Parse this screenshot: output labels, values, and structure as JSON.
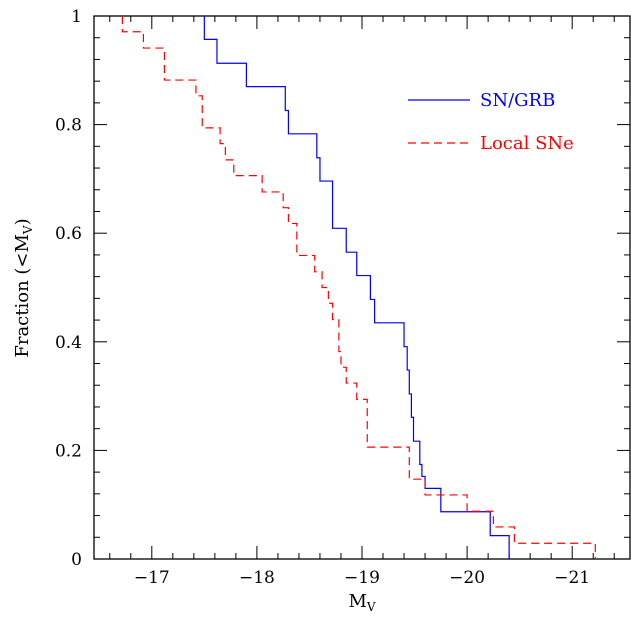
{
  "chart_data": {
    "type": "line",
    "title": "",
    "xlabel": {
      "main": "M",
      "sub": "V"
    },
    "ylabel": {
      "main": "Fraction (<M",
      "sub": "V",
      "close": ")"
    },
    "xlim": [
      -16.45,
      -21.55
    ],
    "ylim": [
      0,
      1
    ],
    "x_axis_reversed": true,
    "x_ticks": [
      -17,
      -18,
      -19,
      -20,
      -21
    ],
    "x_tick_labels": [
      "−17",
      "−18",
      "−19",
      "−20",
      "−21"
    ],
    "y_ticks": [
      0,
      0.2,
      0.4,
      0.6,
      0.8,
      1
    ],
    "y_tick_labels": [
      "0",
      "0.2",
      "0.4",
      "0.6",
      "0.8",
      "1"
    ],
    "legend_position": "top-right",
    "series": [
      {
        "name": "SN/GRB",
        "color": "#0000ff",
        "style": "solid",
        "steps": [
          [
            -17.5,
            1.0
          ],
          [
            -17.5,
            0.957
          ],
          [
            -17.62,
            0.957
          ],
          [
            -17.62,
            0.913
          ],
          [
            -17.9,
            0.913
          ],
          [
            -17.9,
            0.87
          ],
          [
            -18.27,
            0.87
          ],
          [
            -18.27,
            0.826
          ],
          [
            -18.3,
            0.826
          ],
          [
            -18.3,
            0.783
          ],
          [
            -18.57,
            0.783
          ],
          [
            -18.57,
            0.739
          ],
          [
            -18.6,
            0.739
          ],
          [
            -18.6,
            0.696
          ],
          [
            -18.72,
            0.696
          ],
          [
            -18.72,
            0.609
          ],
          [
            -18.85,
            0.609
          ],
          [
            -18.85,
            0.565
          ],
          [
            -18.95,
            0.565
          ],
          [
            -18.95,
            0.522
          ],
          [
            -19.08,
            0.522
          ],
          [
            -19.08,
            0.478
          ],
          [
            -19.12,
            0.478
          ],
          [
            -19.12,
            0.435
          ],
          [
            -19.4,
            0.435
          ],
          [
            -19.4,
            0.391
          ],
          [
            -19.43,
            0.391
          ],
          [
            -19.43,
            0.348
          ],
          [
            -19.45,
            0.348
          ],
          [
            -19.45,
            0.304
          ],
          [
            -19.47,
            0.304
          ],
          [
            -19.47,
            0.261
          ],
          [
            -19.49,
            0.261
          ],
          [
            -19.49,
            0.217
          ],
          [
            -19.55,
            0.217
          ],
          [
            -19.55,
            0.174
          ],
          [
            -19.57,
            0.174
          ],
          [
            -19.57,
            0.152
          ],
          [
            -19.6,
            0.152
          ],
          [
            -19.6,
            0.13
          ],
          [
            -19.75,
            0.13
          ],
          [
            -19.75,
            0.087
          ],
          [
            -20.22,
            0.087
          ],
          [
            -20.22,
            0.043
          ],
          [
            -20.4,
            0.043
          ],
          [
            -20.4,
            0.0
          ]
        ]
      },
      {
        "name": "Local SNe",
        "color": "#ff0000",
        "style": "dashed",
        "steps": [
          [
            -16.72,
            1.0
          ],
          [
            -16.72,
            0.971
          ],
          [
            -16.92,
            0.971
          ],
          [
            -16.92,
            0.941
          ],
          [
            -17.12,
            0.941
          ],
          [
            -17.12,
            0.882
          ],
          [
            -17.42,
            0.882
          ],
          [
            -17.42,
            0.853
          ],
          [
            -17.48,
            0.853
          ],
          [
            -17.48,
            0.794
          ],
          [
            -17.65,
            0.794
          ],
          [
            -17.65,
            0.765
          ],
          [
            -17.7,
            0.765
          ],
          [
            -17.7,
            0.735
          ],
          [
            -17.78,
            0.735
          ],
          [
            -17.78,
            0.706
          ],
          [
            -18.05,
            0.706
          ],
          [
            -18.05,
            0.676
          ],
          [
            -18.25,
            0.676
          ],
          [
            -18.25,
            0.647
          ],
          [
            -18.3,
            0.647
          ],
          [
            -18.3,
            0.618
          ],
          [
            -18.38,
            0.618
          ],
          [
            -18.38,
            0.559
          ],
          [
            -18.55,
            0.559
          ],
          [
            -18.55,
            0.529
          ],
          [
            -18.62,
            0.529
          ],
          [
            -18.62,
            0.5
          ],
          [
            -18.68,
            0.5
          ],
          [
            -18.68,
            0.471
          ],
          [
            -18.72,
            0.471
          ],
          [
            -18.72,
            0.441
          ],
          [
            -18.78,
            0.441
          ],
          [
            -18.78,
            0.382
          ],
          [
            -18.8,
            0.382
          ],
          [
            -18.8,
            0.353
          ],
          [
            -18.85,
            0.353
          ],
          [
            -18.85,
            0.324
          ],
          [
            -18.95,
            0.324
          ],
          [
            -18.95,
            0.294
          ],
          [
            -19.05,
            0.294
          ],
          [
            -19.05,
            0.206
          ],
          [
            -19.45,
            0.206
          ],
          [
            -19.45,
            0.147
          ],
          [
            -19.6,
            0.147
          ],
          [
            -19.6,
            0.118
          ],
          [
            -19.7,
            0.118
          ],
          [
            -19.7,
            0.118
          ],
          [
            -20.0,
            0.118
          ],
          [
            -20.0,
            0.088
          ],
          [
            -20.25,
            0.088
          ],
          [
            -20.25,
            0.059
          ],
          [
            -20.45,
            0.059
          ],
          [
            -20.45,
            0.029
          ],
          [
            -21.22,
            0.029
          ],
          [
            -21.22,
            0.0
          ]
        ]
      }
    ]
  }
}
